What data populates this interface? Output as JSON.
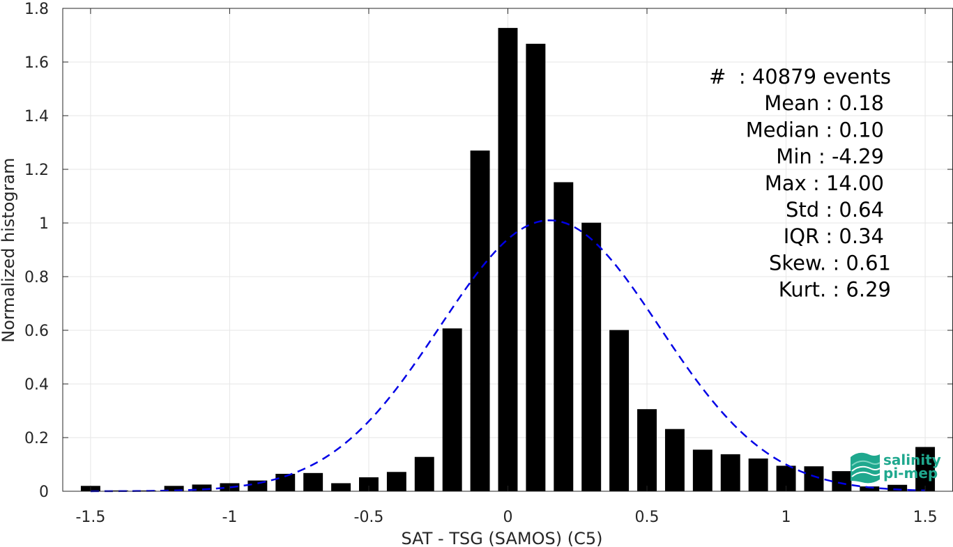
{
  "chart_data": {
    "type": "bar",
    "xlabel": "SAT - TSG (SAMOS) (C5)",
    "ylabel": "Normalized histogram",
    "xlim": [
      -1.6,
      1.6
    ],
    "ylim": [
      0,
      1.8
    ],
    "xticks": [
      -1.5,
      -1,
      -0.5,
      0,
      0.5,
      1,
      1.5
    ],
    "xtick_labels": [
      "-1.5",
      "-1",
      "-0.5",
      "0",
      "0.5",
      "1",
      "1.5"
    ],
    "yticks": [
      0,
      0.2,
      0.4,
      0.6,
      0.8,
      1,
      1.2,
      1.4,
      1.6,
      1.8
    ],
    "ytick_labels": [
      "0",
      "0.2",
      "0.4",
      "0.6",
      "0.8",
      "1",
      "1.2",
      "1.4",
      "1.6",
      "1.8"
    ],
    "grid": true,
    "bar_width": 0.07,
    "bar_color": "#000000",
    "bars": {
      "x": [
        -1.5,
        -1.4,
        -1.3,
        -1.2,
        -1.1,
        -1.0,
        -0.9,
        -0.8,
        -0.7,
        -0.6,
        -0.5,
        -0.4,
        -0.3,
        -0.2,
        -0.1,
        0.0,
        0.1,
        0.2,
        0.3,
        0.4,
        0.5,
        0.6,
        0.7,
        0.8,
        0.9,
        1.0,
        1.1,
        1.2,
        1.3,
        1.4,
        1.5
      ],
      "values": [
        0.02,
        0.003,
        0.003,
        0.02,
        0.025,
        0.03,
        0.04,
        0.065,
        0.068,
        0.03,
        0.052,
        0.072,
        0.128,
        0.607,
        1.27,
        1.727,
        1.668,
        1.152,
        1.001,
        0.601,
        0.306,
        0.232,
        0.155,
        0.138,
        0.122,
        0.095,
        0.093,
        0.075,
        0.018,
        0.024,
        0.165
      ]
    },
    "fit_curve": {
      "style": "dashed",
      "color": "#0000e6",
      "mean": 0.15,
      "std": 0.395,
      "peak": 1.01,
      "x_range": [
        -1.5,
        1.5
      ]
    },
    "stats": [
      {
        "label": "#  : 40879 events",
        "offset": 0
      },
      {
        "label": "Mean : 0.18",
        "offset": 10
      },
      {
        "label": "Median : 0.10",
        "offset": 10
      },
      {
        "label": "Min : -4.29",
        "offset": 10
      },
      {
        "label": "Max : 14.00",
        "offset": 10
      },
      {
        "label": "Std : 0.64",
        "offset": 10
      },
      {
        "label": "IQR : 0.34",
        "offset": 10
      },
      {
        "label": "Skew. : 0.61",
        "offset": 0
      },
      {
        "label": "Kurt. : 6.29",
        "offset": 0
      }
    ]
  },
  "logo": {
    "line1": "salinity",
    "line2": "pi-mep",
    "color": "#1fa88e"
  }
}
